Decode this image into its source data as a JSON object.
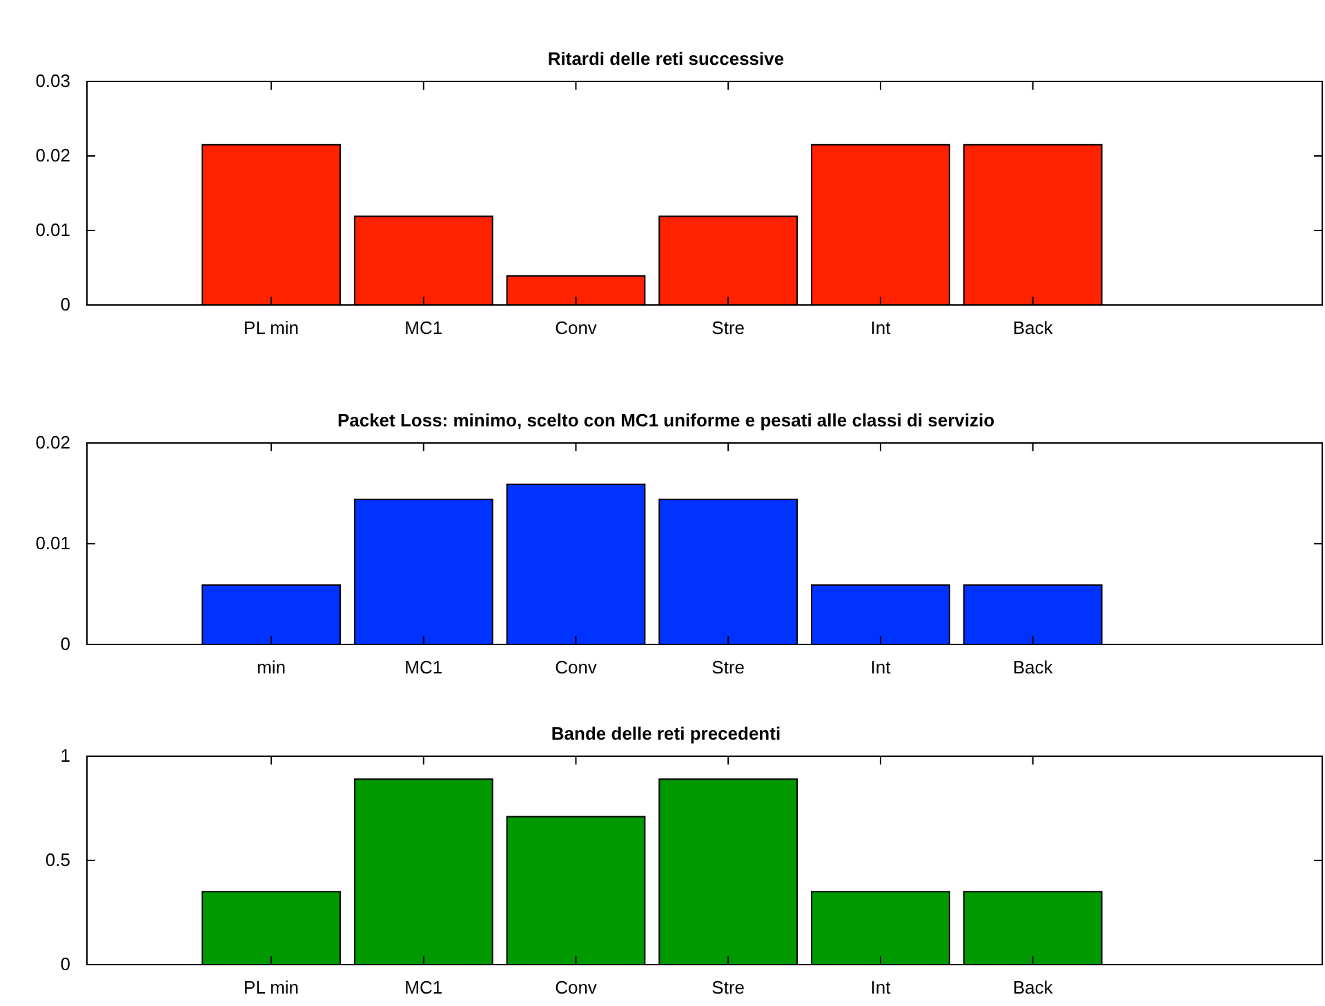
{
  "chart_data": [
    {
      "type": "bar",
      "title": "Ritardi delle reti successive",
      "categories": [
        "PL min",
        "MC1",
        "Conv",
        "Stre",
        "Int",
        "Back"
      ],
      "values": [
        0.0215,
        0.0119,
        0.0039,
        0.0119,
        0.0215,
        0.0215
      ],
      "color": "#ff2200",
      "ylim": [
        0,
        0.03
      ],
      "yticks": [
        0,
        0.01,
        0.02,
        0.03
      ]
    },
    {
      "type": "bar",
      "title": "Packet Loss: minimo, scelto con MC1 uniforme e pesati alle classi di servizio",
      "categories": [
        "min",
        "MC1",
        "Conv",
        "Stre",
        "Int",
        "Back"
      ],
      "values": [
        0.0059,
        0.0144,
        0.0159,
        0.0144,
        0.0059,
        0.0059
      ],
      "color": "#0033ff",
      "ylim": [
        0,
        0.02
      ],
      "yticks": [
        0,
        0.01,
        0.02
      ]
    },
    {
      "type": "bar",
      "title": "Bande delle reti precedenti",
      "categories": [
        "PL min",
        "MC1",
        "Conv",
        "Stre",
        "Int",
        "Back"
      ],
      "values": [
        0.35,
        0.89,
        0.71,
        0.89,
        0.35,
        0.35
      ],
      "color": "#009900",
      "ylim": [
        0,
        1
      ],
      "yticks": [
        0,
        0.5,
        1
      ]
    }
  ]
}
